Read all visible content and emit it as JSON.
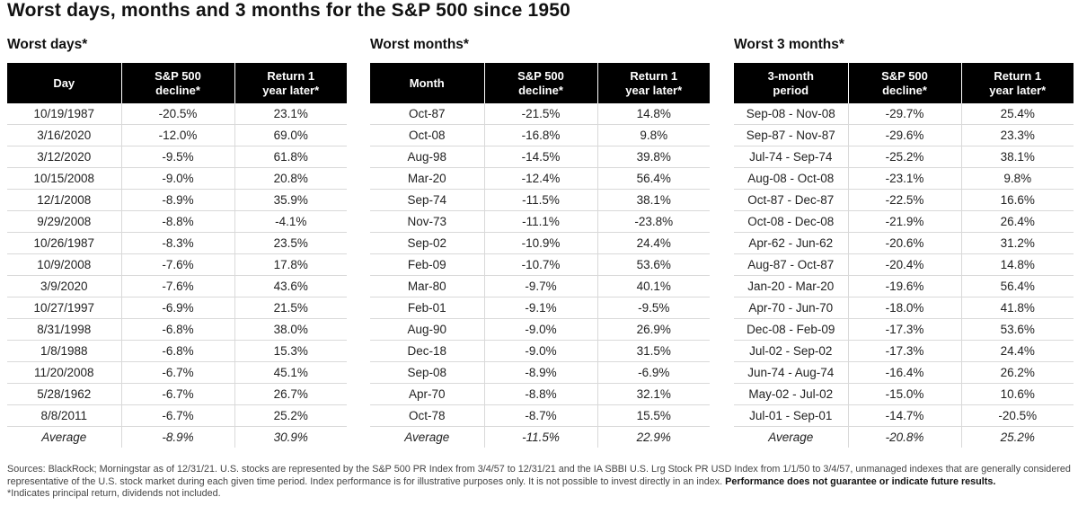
{
  "title": "Worst days, months and 3 months for the S&P 500 since 1950",
  "panels": [
    {
      "title": "Worst days*",
      "headers": [
        "Day",
        "S&P 500\ndecline*",
        "Return 1\nyear later*"
      ],
      "rows": [
        [
          "10/19/1987",
          "-20.5%",
          "23.1%"
        ],
        [
          "3/16/2020",
          "-12.0%",
          "69.0%"
        ],
        [
          "3/12/2020",
          "-9.5%",
          "61.8%"
        ],
        [
          "10/15/2008",
          "-9.0%",
          "20.8%"
        ],
        [
          "12/1/2008",
          "-8.9%",
          "35.9%"
        ],
        [
          "9/29/2008",
          "-8.8%",
          "-4.1%"
        ],
        [
          "10/26/1987",
          "-8.3%",
          "23.5%"
        ],
        [
          "10/9/2008",
          "-7.6%",
          "17.8%"
        ],
        [
          "3/9/2020",
          "-7.6%",
          "43.6%"
        ],
        [
          "10/27/1997",
          "-6.9%",
          "21.5%"
        ],
        [
          "8/31/1998",
          "-6.8%",
          "38.0%"
        ],
        [
          "1/8/1988",
          "-6.8%",
          "15.3%"
        ],
        [
          "11/20/2008",
          "-6.7%",
          "45.1%"
        ],
        [
          "5/28/1962",
          "-6.7%",
          "26.7%"
        ],
        [
          "8/8/2011",
          "-6.7%",
          "25.2%"
        ]
      ],
      "average": [
        "Average",
        "-8.9%",
        "30.9%"
      ]
    },
    {
      "title": "Worst months*",
      "headers": [
        "Month",
        "S&P 500\ndecline*",
        "Return 1\nyear later*"
      ],
      "rows": [
        [
          "Oct-87",
          "-21.5%",
          "14.8%"
        ],
        [
          "Oct-08",
          "-16.8%",
          "9.8%"
        ],
        [
          "Aug-98",
          "-14.5%",
          "39.8%"
        ],
        [
          "Mar-20",
          "-12.4%",
          "56.4%"
        ],
        [
          "Sep-74",
          "-11.5%",
          "38.1%"
        ],
        [
          "Nov-73",
          "-11.1%",
          "-23.8%"
        ],
        [
          "Sep-02",
          "-10.9%",
          "24.4%"
        ],
        [
          "Feb-09",
          "-10.7%",
          "53.6%"
        ],
        [
          "Mar-80",
          "-9.7%",
          "40.1%"
        ],
        [
          "Feb-01",
          "-9.1%",
          "-9.5%"
        ],
        [
          "Aug-90",
          "-9.0%",
          "26.9%"
        ],
        [
          "Dec-18",
          "-9.0%",
          "31.5%"
        ],
        [
          "Sep-08",
          "-8.9%",
          "-6.9%"
        ],
        [
          "Apr-70",
          "-8.8%",
          "32.1%"
        ],
        [
          "Oct-78",
          "-8.7%",
          "15.5%"
        ]
      ],
      "average": [
        "Average",
        "-11.5%",
        "22.9%"
      ]
    },
    {
      "title": "Worst 3 months*",
      "headers": [
        "3-month\nperiod",
        "S&P 500\ndecline*",
        "Return 1\nyear later*"
      ],
      "rows": [
        [
          "Sep-08 - Nov-08",
          "-29.7%",
          "25.4%"
        ],
        [
          "Sep-87 - Nov-87",
          "-29.6%",
          "23.3%"
        ],
        [
          "Jul-74 - Sep-74",
          "-25.2%",
          "38.1%"
        ],
        [
          "Aug-08 - Oct-08",
          "-23.1%",
          "9.8%"
        ],
        [
          "Oct-87 - Dec-87",
          "-22.5%",
          "16.6%"
        ],
        [
          "Oct-08 - Dec-08",
          "-21.9%",
          "26.4%"
        ],
        [
          "Apr-62 - Jun-62",
          "-20.6%",
          "31.2%"
        ],
        [
          "Aug-87 - Oct-87",
          "-20.4%",
          "14.8%"
        ],
        [
          "Jan-20 - Mar-20",
          "-19.6%",
          "56.4%"
        ],
        [
          "Apr-70 - Jun-70",
          "-18.0%",
          "41.8%"
        ],
        [
          "Dec-08 - Feb-09",
          "-17.3%",
          "53.6%"
        ],
        [
          "Jul-02 - Sep-02",
          "-17.3%",
          "24.4%"
        ],
        [
          "Jun-74 - Aug-74",
          "-16.4%",
          "26.2%"
        ],
        [
          "May-02 - Jul-02",
          "-15.0%",
          "10.6%"
        ],
        [
          "Jul-01 - Sep-01",
          "-14.7%",
          "-20.5%"
        ]
      ],
      "average": [
        "Average",
        "-20.8%",
        "25.2%"
      ]
    }
  ],
  "footnote": {
    "sources": "Sources: BlackRock; Morningstar as of 12/31/21. U.S. stocks are represented by the S&P 500 PR Index from 3/4/57 to 12/31/21 and the IA SBBI U.S. Lrg Stock PR USD Index from 1/1/50 to 3/4/57, unmanaged indexes that are generally considered representative of the U.S. stock market during each given time period. Index performance is for illustrative purposes only. It is not possible to invest directly in an index.",
    "disclaimer": "Performance does not guarantee or indicate future results.",
    "asterisk": "*Indicates principal return, dividends not included."
  }
}
